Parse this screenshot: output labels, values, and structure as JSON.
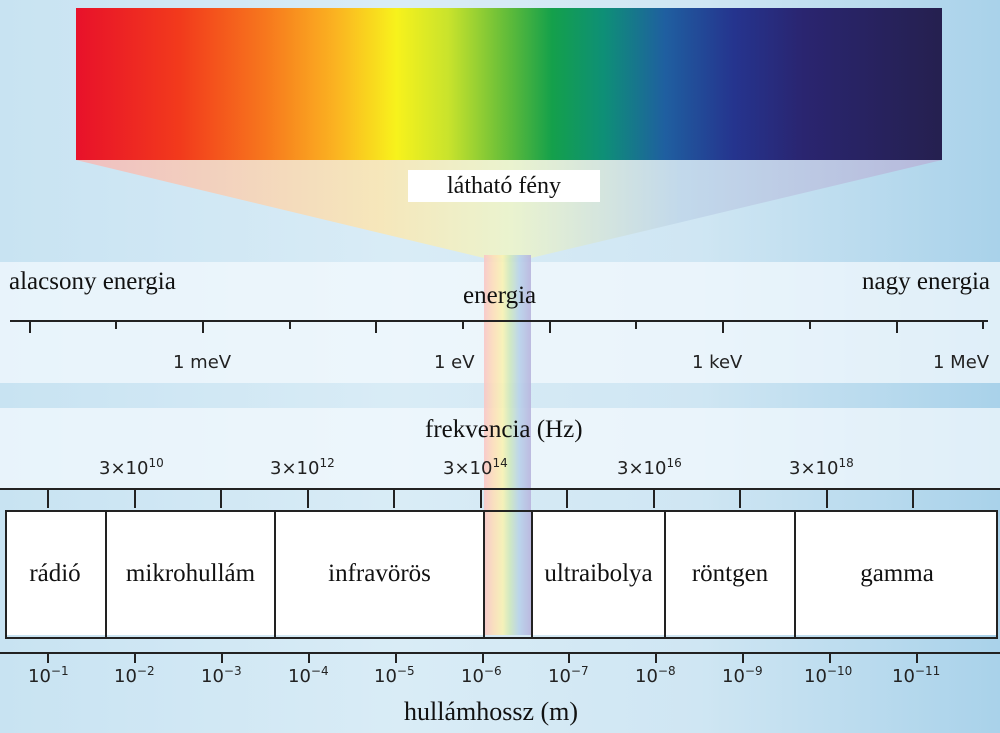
{
  "visible_light_label": "látható fény",
  "energy": {
    "low_label": "alacsony energia",
    "high_label": "nagy energia",
    "title": "energia",
    "ticks": [
      "1 meV",
      "1 eV",
      "1 keV",
      "1 MeV"
    ]
  },
  "frequency": {
    "title": "frekvencia (Hz)",
    "ticks": [
      {
        "base": "3×10",
        "exp": "10"
      },
      {
        "base": "3×10",
        "exp": "12"
      },
      {
        "base": "3×10",
        "exp": "14"
      },
      {
        "base": "3×10",
        "exp": "16"
      },
      {
        "base": "3×10",
        "exp": "18"
      }
    ]
  },
  "regions": [
    "rádió",
    "mikrohullám",
    "infravörös",
    "ultraibolya",
    "röntgen",
    "gamma"
  ],
  "wavelength": {
    "title": "hullámhossz (m)",
    "ticks": [
      {
        "base": "10",
        "exp": "−1"
      },
      {
        "base": "10",
        "exp": "−2"
      },
      {
        "base": "10",
        "exp": "−3"
      },
      {
        "base": "10",
        "exp": "−4"
      },
      {
        "base": "10",
        "exp": "−5"
      },
      {
        "base": "10",
        "exp": "−6"
      },
      {
        "base": "10",
        "exp": "−7"
      },
      {
        "base": "10",
        "exp": "−8"
      },
      {
        "base": "10",
        "exp": "−9"
      },
      {
        "base": "10",
        "exp": "−10"
      },
      {
        "base": "10",
        "exp": "−11"
      }
    ]
  },
  "colors": {
    "red": "#e8112a",
    "yellow": "#f7f21c",
    "green": "#14a04b",
    "blue": "#1f5fa0",
    "violet": "#25204f"
  }
}
